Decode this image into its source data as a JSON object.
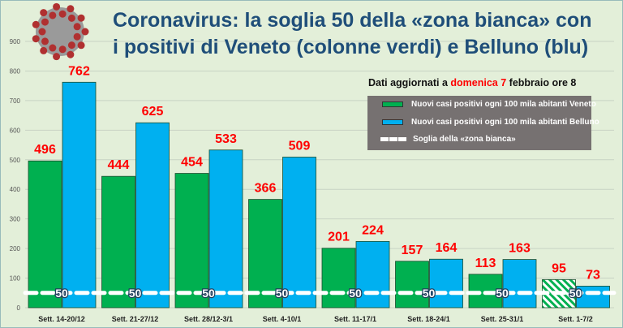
{
  "title_line1": "Coronavirus: la soglia 50 della «zona bianca» con",
  "title_line2": "i positivi di Veneto (colonne verdi) e Belluno (blu)",
  "updated": {
    "prefix": "Dati aggiornati a ",
    "highlight": "domenica 7",
    "suffix": " febbraio ore 8"
  },
  "colors": {
    "veneto": "#00b050",
    "belluno": "#00b0f0",
    "label": "#ff0000",
    "threshold": "#ffffff"
  },
  "chart_data": {
    "type": "bar",
    "title": "Coronavirus: la soglia 50 della «zona bianca» con i positivi di Veneto (colonne verdi) e Belluno (blu)",
    "categories": [
      "Sett. 14-20/12",
      "Sett. 21-27/12",
      "Sett. 28/12-3/1",
      "Sett. 4-10/1",
      "Sett. 11-17/1",
      "Sett. 18-24/1",
      "Sett. 25-31/1",
      "Sett. 1-7/2"
    ],
    "series": [
      {
        "name": "Nuovi casi positivi ogni 100 mila abitanti Veneto",
        "values": [
          496,
          444,
          454,
          366,
          201,
          157,
          113,
          95
        ]
      },
      {
        "name": "Nuovi casi positivi ogni 100 mila abitanti Belluno",
        "values": [
          762,
          625,
          533,
          509,
          224,
          164,
          163,
          73
        ]
      }
    ],
    "threshold": {
      "name": "Soglia della «zona bianca»",
      "value": 50,
      "label": "50"
    },
    "yticks": [
      "0",
      "100",
      "200",
      "300",
      "400",
      "500",
      "600",
      "700",
      "800",
      "900"
    ],
    "ylim": [
      0,
      900
    ],
    "grid": true,
    "legend_position": "top-right",
    "xlabel": "",
    "ylabel": ""
  }
}
